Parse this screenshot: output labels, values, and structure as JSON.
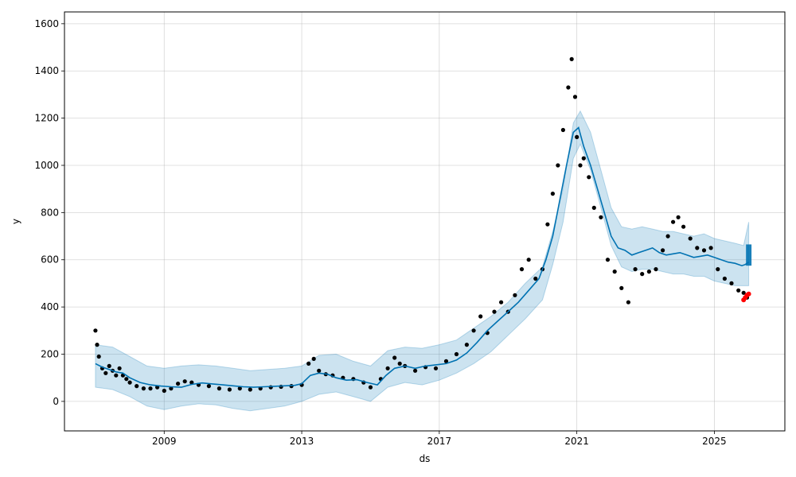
{
  "chart_data": {
    "type": "line",
    "title": "",
    "xlabel": "ds",
    "ylabel": "y",
    "grid": true,
    "xlim": [
      2006.1,
      2027.05
    ],
    "ylim": [
      -125,
      1650
    ],
    "xticks": [
      {
        "value": 2009,
        "label": "2009"
      },
      {
        "value": 2013,
        "label": "2013"
      },
      {
        "value": 2017,
        "label": "2017"
      },
      {
        "value": 2021,
        "label": "2021"
      },
      {
        "value": 2025,
        "label": "2025"
      }
    ],
    "yticks": [
      {
        "value": 0,
        "label": "0"
      },
      {
        "value": 200,
        "label": "200"
      },
      {
        "value": 400,
        "label": "400"
      },
      {
        "value": 600,
        "label": "600"
      },
      {
        "value": 800,
        "label": "800"
      },
      {
        "value": 1000,
        "label": "1000"
      },
      {
        "value": 1200,
        "label": "1200"
      },
      {
        "value": 1400,
        "label": "1400"
      },
      {
        "value": 1600,
        "label": "1600"
      }
    ],
    "colors": {
      "actual": "#000000",
      "forecast": "#0072B2",
      "interval": "#0072B2",
      "highlight": "#ff0000"
    },
    "series": [
      {
        "kind": "actual",
        "x": [
          2007.0,
          2007.05,
          2007.1,
          2007.2,
          2007.3,
          2007.4,
          2007.5,
          2007.6,
          2007.7,
          2007.8,
          2007.9,
          2008.0,
          2008.2,
          2008.4,
          2008.6,
          2008.8,
          2009.0,
          2009.2,
          2009.4,
          2009.6,
          2009.8,
          2010.0,
          2010.3,
          2010.6,
          2010.9,
          2011.2,
          2011.5,
          2011.8,
          2012.1,
          2012.4,
          2012.7,
          2013.0,
          2013.2,
          2013.35,
          2013.5,
          2013.7,
          2013.9,
          2014.2,
          2014.5,
          2014.8,
          2015.0,
          2015.3,
          2015.5,
          2015.7,
          2015.85,
          2016.0,
          2016.3,
          2016.6,
          2016.9,
          2017.2,
          2017.5,
          2017.8,
          2018.0,
          2018.2,
          2018.4,
          2018.6,
          2018.8,
          2019.0,
          2019.2,
          2019.4,
          2019.6,
          2019.8,
          2020.0,
          2020.15,
          2020.3,
          2020.45,
          2020.6,
          2020.75,
          2020.85,
          2020.95,
          2021.0,
          2021.1,
          2021.2,
          2021.35,
          2021.5,
          2021.7,
          2021.9,
          2022.1,
          2022.3,
          2022.5,
          2022.7,
          2022.9,
          2023.1,
          2023.3,
          2023.5,
          2023.65,
          2023.8,
          2023.95,
          2024.1,
          2024.3,
          2024.5,
          2024.7,
          2024.9,
          2025.1,
          2025.3,
          2025.5,
          2025.7,
          2025.85,
          2025.95
        ],
        "y": [
          300,
          240,
          190,
          140,
          120,
          150,
          130,
          110,
          140,
          110,
          95,
          80,
          65,
          55,
          55,
          60,
          45,
          55,
          75,
          85,
          80,
          70,
          65,
          55,
          50,
          55,
          50,
          55,
          60,
          62,
          65,
          70,
          160,
          180,
          130,
          115,
          110,
          100,
          95,
          80,
          60,
          95,
          140,
          185,
          160,
          150,
          130,
          145,
          140,
          170,
          200,
          240,
          300,
          360,
          290,
          380,
          420,
          380,
          450,
          560,
          600,
          520,
          560,
          750,
          880,
          1000,
          1150,
          1330,
          1450,
          1290,
          1120,
          1000,
          1030,
          950,
          820,
          780,
          600,
          550,
          480,
          420,
          560,
          540,
          550,
          560,
          640,
          700,
          760,
          780,
          740,
          690,
          650,
          640,
          650,
          560,
          520,
          500,
          470,
          460,
          440
        ]
      },
      {
        "kind": "forecast",
        "x": [
          2007.0,
          2007.2,
          2007.4,
          2007.6,
          2007.8,
          2008.0,
          2008.3,
          2008.6,
          2008.9,
          2009.2,
          2009.5,
          2009.8,
          2010.1,
          2010.4,
          2010.7,
          2011.0,
          2011.3,
          2011.6,
          2011.9,
          2012.2,
          2012.5,
          2012.8,
          2013.0,
          2013.25,
          2013.5,
          2013.75,
          2014.0,
          2014.3,
          2014.6,
          2014.9,
          2015.2,
          2015.45,
          2015.7,
          2016.0,
          2016.3,
          2016.6,
          2016.9,
          2017.2,
          2017.5,
          2017.8,
          2018.1,
          2018.4,
          2018.7,
          2019.0,
          2019.3,
          2019.6,
          2019.9,
          2020.1,
          2020.3,
          2020.5,
          2020.7,
          2020.9,
          2021.05,
          2021.2,
          2021.4,
          2021.6,
          2021.8,
          2022.0,
          2022.2,
          2022.4,
          2022.6,
          2022.8,
          2023.0,
          2023.2,
          2023.4,
          2023.6,
          2023.8,
          2024.0,
          2024.2,
          2024.4,
          2024.6,
          2024.8,
          2025.0,
          2025.2,
          2025.4,
          2025.6,
          2025.8,
          2025.9,
          2026.0
        ],
        "y": [
          160,
          145,
          135,
          125,
          120,
          100,
          80,
          70,
          65,
          62,
          60,
          72,
          78,
          74,
          70,
          66,
          62,
          60,
          62,
          64,
          66,
          68,
          75,
          110,
          120,
          115,
          100,
          90,
          92,
          80,
          70,
          110,
          140,
          150,
          140,
          150,
          155,
          160,
          175,
          205,
          250,
          300,
          340,
          380,
          420,
          470,
          520,
          600,
          700,
          850,
          1000,
          1140,
          1160,
          1080,
          1000,
          900,
          800,
          700,
          650,
          640,
          620,
          630,
          640,
          650,
          630,
          620,
          625,
          630,
          620,
          610,
          615,
          620,
          610,
          600,
          590,
          585,
          575,
          580,
          590
        ]
      },
      {
        "kind": "interval-upper",
        "x": [
          2007.0,
          2007.5,
          2008.0,
          2008.5,
          2009.0,
          2009.5,
          2010.0,
          2010.5,
          2011.0,
          2011.5,
          2012.0,
          2012.5,
          2013.0,
          2013.5,
          2014.0,
          2014.5,
          2015.0,
          2015.5,
          2016.0,
          2016.5,
          2017.0,
          2017.5,
          2018.0,
          2018.5,
          2019.0,
          2019.5,
          2020.0,
          2020.3,
          2020.6,
          2020.9,
          2021.1,
          2021.4,
          2021.7,
          2022.0,
          2022.3,
          2022.6,
          2022.9,
          2023.2,
          2023.5,
          2023.8,
          2024.1,
          2024.4,
          2024.7,
          2025.0,
          2025.3,
          2025.6,
          2025.85,
          2026.0
        ],
        "y": [
          240,
          230,
          190,
          150,
          140,
          150,
          155,
          150,
          140,
          130,
          135,
          140,
          150,
          195,
          200,
          170,
          150,
          215,
          230,
          225,
          240,
          260,
          310,
          360,
          420,
          500,
          570,
          720,
          900,
          1180,
          1230,
          1140,
          980,
          820,
          740,
          730,
          740,
          730,
          720,
          720,
          710,
          700,
          710,
          690,
          680,
          670,
          660,
          760
        ]
      },
      {
        "kind": "interval-lower",
        "x": [
          2007.0,
          2007.5,
          2008.0,
          2008.5,
          2009.0,
          2009.5,
          2010.0,
          2010.5,
          2011.0,
          2011.5,
          2012.0,
          2012.5,
          2013.0,
          2013.5,
          2014.0,
          2014.5,
          2015.0,
          2015.5,
          2016.0,
          2016.5,
          2017.0,
          2017.5,
          2018.0,
          2018.5,
          2019.0,
          2019.5,
          2020.0,
          2020.3,
          2020.6,
          2020.9,
          2021.1,
          2021.4,
          2021.7,
          2022.0,
          2022.3,
          2022.6,
          2022.9,
          2023.2,
          2023.5,
          2023.8,
          2024.1,
          2024.4,
          2024.7,
          2025.0,
          2025.3,
          2025.6,
          2025.85,
          2026.0
        ],
        "y": [
          60,
          50,
          20,
          -20,
          -35,
          -20,
          -10,
          -15,
          -30,
          -40,
          -30,
          -20,
          0,
          30,
          40,
          20,
          0,
          60,
          80,
          70,
          90,
          120,
          160,
          210,
          280,
          350,
          430,
          580,
          760,
          1030,
          1090,
          980,
          820,
          660,
          570,
          550,
          560,
          560,
          550,
          540,
          540,
          530,
          530,
          510,
          500,
          490,
          490,
          490
        ]
      },
      {
        "kind": "highlight",
        "x": [
          2025.85,
          2025.9,
          2025.95,
          2026.0
        ],
        "y": [
          430,
          440,
          450,
          455
        ]
      }
    ],
    "forecast_block": {
      "x0": 2025.92,
      "x1": 2026.08,
      "ymin": 575,
      "ymax": 665
    }
  }
}
